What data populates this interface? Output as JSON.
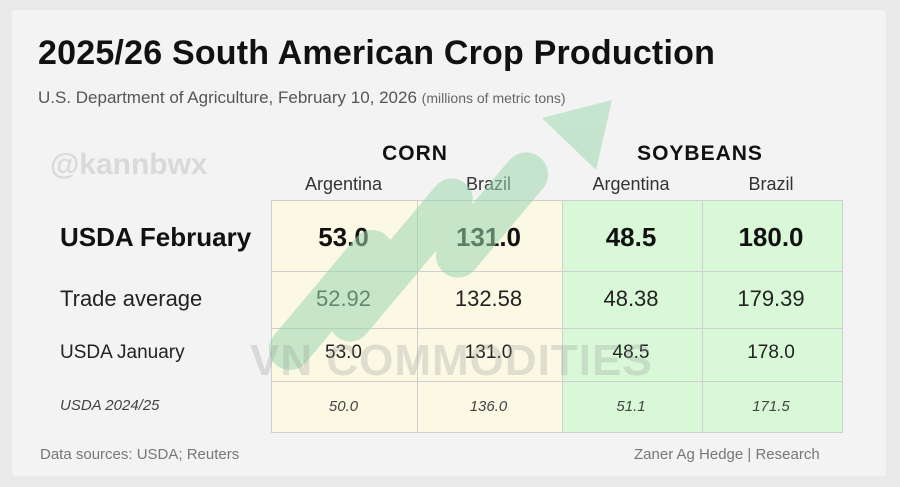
{
  "title": "2025/26 South American Crop Production",
  "subtitle": "U.S. Department of Agriculture, February 10, 2026",
  "units": "(millions of metric tons)",
  "watermarks": {
    "handle": "@kannbwx",
    "brand": "VN COMMODITIES"
  },
  "colors": {
    "corn_bg": "#fbf8e4",
    "soy_bg": "#d9f8d8",
    "arrow": "#9ed8b0"
  },
  "footer": {
    "sources": "Data sources: USDA; Reuters",
    "credit": "Zaner Ag Hedge | Research"
  },
  "chart_data": {
    "type": "table",
    "groups": [
      {
        "name": "CORN",
        "columns": [
          "Argentina",
          "Brazil"
        ]
      },
      {
        "name": "SOYBEANS",
        "columns": [
          "Argentina",
          "Brazil"
        ]
      }
    ],
    "columns": [
      "Argentina",
      "Brazil",
      "Argentina",
      "Brazil"
    ],
    "rows": [
      {
        "label": "USDA February",
        "values": [
          "53.0",
          "131.0",
          "48.5",
          "180.0"
        ]
      },
      {
        "label": "Trade average",
        "values": [
          "52.92",
          "132.58",
          "48.38",
          "179.39"
        ]
      },
      {
        "label": "USDA January",
        "values": [
          "53.0",
          "131.0",
          "48.5",
          "178.0"
        ]
      },
      {
        "label": "USDA 2024/25",
        "values": [
          "50.0",
          "136.0",
          "51.1",
          "171.5"
        ]
      }
    ]
  }
}
